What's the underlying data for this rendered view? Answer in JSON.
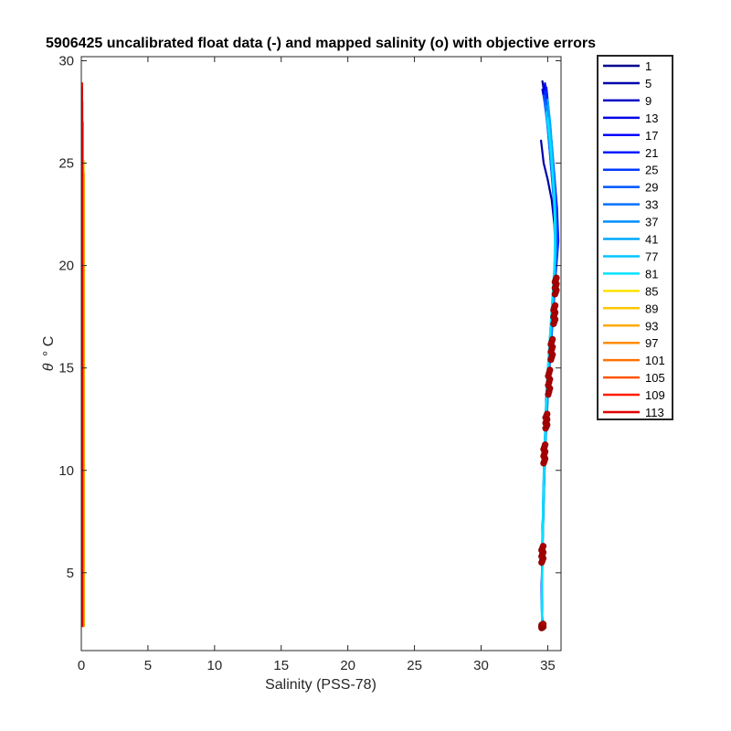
{
  "chart_data": {
    "type": "line",
    "title": "5906425 uncalibrated float data (-) and mapped salinity (o) with objective errors",
    "xlabel": "Salinity (PSS-78)",
    "ylabel_symbol": "θ",
    "ylabel_unit": "° C",
    "xlim": [
      0,
      36
    ],
    "ylim": [
      1.2,
      30.2
    ],
    "xticks": [
      0,
      5,
      10,
      15,
      20,
      25,
      30,
      35
    ],
    "yticks": [
      5,
      10,
      15,
      20,
      25,
      30
    ],
    "grid": false,
    "legend_position": "outside-right",
    "series": [
      {
        "name": "1",
        "color": "#00008F",
        "group": "high",
        "points": [
          [
            34.6,
            29.0
          ],
          [
            34.8,
            28.2
          ],
          [
            35.0,
            27.0
          ],
          [
            35.2,
            25.5
          ],
          [
            35.4,
            24.0
          ],
          [
            35.6,
            22.5
          ],
          [
            35.6,
            21.0
          ],
          [
            35.5,
            19.5
          ],
          [
            35.3,
            17.5
          ],
          [
            35.1,
            15.5
          ],
          [
            34.9,
            13.5
          ],
          [
            34.8,
            11.5
          ],
          [
            34.7,
            9.0
          ],
          [
            34.6,
            6.5
          ],
          [
            34.55,
            4.0
          ],
          [
            34.6,
            2.4
          ]
        ]
      },
      {
        "name": "5",
        "color": "#0000AB",
        "group": "high",
        "points": [
          [
            34.5,
            26.1
          ],
          [
            34.7,
            25.0
          ],
          [
            35.0,
            24.2
          ],
          [
            35.3,
            23.2
          ],
          [
            35.5,
            22.0
          ],
          [
            35.6,
            20.5
          ],
          [
            35.5,
            19.0
          ],
          [
            35.3,
            17.0
          ],
          [
            35.1,
            15.0
          ],
          [
            34.9,
            13.0
          ],
          [
            34.8,
            11.0
          ],
          [
            34.7,
            8.5
          ],
          [
            34.6,
            6.0
          ],
          [
            34.55,
            3.5
          ],
          [
            34.6,
            2.4
          ]
        ]
      },
      {
        "name": "9",
        "color": "#0000C7",
        "group": "high",
        "points": [
          [
            34.6,
            28.6
          ],
          [
            34.9,
            27.5
          ],
          [
            35.1,
            26.0
          ],
          [
            35.3,
            24.5
          ],
          [
            35.5,
            23.0
          ],
          [
            35.6,
            21.5
          ],
          [
            35.5,
            19.8
          ],
          [
            35.3,
            17.8
          ],
          [
            35.1,
            15.8
          ],
          [
            34.9,
            13.8
          ],
          [
            34.8,
            11.8
          ],
          [
            34.7,
            9.2
          ],
          [
            34.6,
            6.6
          ],
          [
            34.55,
            4.2
          ],
          [
            34.6,
            2.4
          ]
        ]
      },
      {
        "name": "13",
        "color": "#0000E3",
        "group": "high",
        "points": [
          [
            34.7,
            28.8
          ],
          [
            34.9,
            27.6
          ],
          [
            35.2,
            26.2
          ],
          [
            35.4,
            24.6
          ],
          [
            35.6,
            23.0
          ],
          [
            35.7,
            21.4
          ],
          [
            35.6,
            19.9
          ],
          [
            35.4,
            17.9
          ],
          [
            35.2,
            15.9
          ],
          [
            35.0,
            13.9
          ],
          [
            34.85,
            11.9
          ],
          [
            34.7,
            9.3
          ],
          [
            34.6,
            6.7
          ],
          [
            34.55,
            4.3
          ],
          [
            34.6,
            2.4
          ]
        ]
      },
      {
        "name": "17",
        "color": "#0000FF",
        "group": "high",
        "points": [
          [
            34.8,
            28.9
          ],
          [
            35.0,
            27.8
          ],
          [
            35.2,
            26.3
          ],
          [
            35.4,
            24.8
          ],
          [
            35.6,
            23.2
          ],
          [
            35.7,
            21.6
          ],
          [
            35.6,
            20.0
          ],
          [
            35.4,
            18.0
          ],
          [
            35.2,
            16.0
          ],
          [
            35.0,
            14.0
          ],
          [
            34.85,
            12.0
          ],
          [
            34.7,
            9.4
          ],
          [
            34.6,
            6.8
          ],
          [
            34.55,
            4.4
          ],
          [
            34.6,
            2.4
          ]
        ]
      },
      {
        "name": "21",
        "color": "#001CFF",
        "group": "high",
        "points": [
          [
            34.9,
            28.7
          ],
          [
            35.1,
            27.4
          ],
          [
            35.3,
            26.0
          ],
          [
            35.5,
            24.4
          ],
          [
            35.7,
            22.8
          ],
          [
            35.8,
            21.2
          ],
          [
            35.6,
            19.6
          ],
          [
            35.4,
            17.6
          ],
          [
            35.2,
            15.6
          ],
          [
            35.0,
            13.6
          ],
          [
            34.85,
            11.6
          ],
          [
            34.7,
            9.1
          ],
          [
            34.6,
            6.5
          ],
          [
            34.55,
            4.1
          ],
          [
            34.6,
            2.4
          ]
        ]
      },
      {
        "name": "25",
        "color": "#0038FF",
        "group": "high",
        "points": [
          [
            34.8,
            28.5
          ],
          [
            35.0,
            27.2
          ],
          [
            35.2,
            25.8
          ],
          [
            35.4,
            24.2
          ],
          [
            35.6,
            22.6
          ],
          [
            35.7,
            21.0
          ],
          [
            35.5,
            19.4
          ],
          [
            35.3,
            17.4
          ],
          [
            35.1,
            15.4
          ],
          [
            34.95,
            13.4
          ],
          [
            34.8,
            11.4
          ],
          [
            34.7,
            8.9
          ],
          [
            34.6,
            6.3
          ],
          [
            34.55,
            3.9
          ],
          [
            34.6,
            2.4
          ]
        ]
      },
      {
        "name": "29",
        "color": "#0054FF",
        "group": "high",
        "points": [
          [
            34.7,
            28.3
          ],
          [
            34.95,
            27.0
          ],
          [
            35.15,
            25.6
          ],
          [
            35.35,
            24.0
          ],
          [
            35.55,
            22.4
          ],
          [
            35.65,
            20.8
          ],
          [
            35.5,
            19.2
          ],
          [
            35.3,
            17.2
          ],
          [
            35.1,
            15.2
          ],
          [
            34.95,
            13.2
          ],
          [
            34.8,
            11.2
          ],
          [
            34.7,
            8.7
          ],
          [
            34.6,
            6.1
          ],
          [
            34.55,
            3.7
          ],
          [
            34.6,
            2.4
          ]
        ]
      },
      {
        "name": "33",
        "color": "#0071FF",
        "group": "high",
        "points": [
          [
            34.8,
            28.0
          ],
          [
            35.0,
            26.8
          ],
          [
            35.2,
            25.4
          ],
          [
            35.4,
            23.8
          ],
          [
            35.6,
            22.2
          ],
          [
            35.6,
            20.6
          ],
          [
            35.5,
            19.0
          ],
          [
            35.3,
            17.0
          ],
          [
            35.1,
            15.0
          ],
          [
            34.95,
            13.0
          ],
          [
            34.8,
            11.0
          ],
          [
            34.7,
            8.5
          ],
          [
            34.6,
            5.9
          ],
          [
            34.55,
            3.5
          ],
          [
            34.6,
            2.4
          ]
        ]
      },
      {
        "name": "37",
        "color": "#008DFF",
        "group": "high",
        "points": [
          [
            34.9,
            27.8
          ],
          [
            35.1,
            26.6
          ],
          [
            35.3,
            25.2
          ],
          [
            35.5,
            23.6
          ],
          [
            35.6,
            22.0
          ],
          [
            35.6,
            20.4
          ],
          [
            35.5,
            18.8
          ],
          [
            35.3,
            16.8
          ],
          [
            35.1,
            14.8
          ],
          [
            34.95,
            12.8
          ],
          [
            34.8,
            10.8
          ],
          [
            34.7,
            8.3
          ],
          [
            34.6,
            5.7
          ],
          [
            34.55,
            3.3
          ],
          [
            34.6,
            2.4
          ]
        ]
      },
      {
        "name": "41",
        "color": "#00A9FF",
        "group": "high",
        "points": [
          [
            35.0,
            28.1
          ],
          [
            35.2,
            26.9
          ],
          [
            35.35,
            25.5
          ],
          [
            35.5,
            23.9
          ],
          [
            35.6,
            22.3
          ],
          [
            35.6,
            20.7
          ],
          [
            35.45,
            19.1
          ],
          [
            35.25,
            17.1
          ],
          [
            35.05,
            15.1
          ],
          [
            34.9,
            13.1
          ],
          [
            34.75,
            11.1
          ],
          [
            34.65,
            8.6
          ],
          [
            34.6,
            6.0
          ],
          [
            34.55,
            3.6
          ],
          [
            34.6,
            2.4
          ]
        ]
      },
      {
        "name": "77",
        "color": "#00C6FF",
        "group": "high",
        "points": [
          [
            34.9,
            27.5
          ],
          [
            35.1,
            26.3
          ],
          [
            35.3,
            25.0
          ],
          [
            35.45,
            23.5
          ],
          [
            35.55,
            21.9
          ],
          [
            35.55,
            20.3
          ],
          [
            35.4,
            18.7
          ],
          [
            35.2,
            16.7
          ],
          [
            35.0,
            14.7
          ],
          [
            34.85,
            12.7
          ],
          [
            34.75,
            10.7
          ],
          [
            34.65,
            8.2
          ],
          [
            34.6,
            5.6
          ],
          [
            34.55,
            3.2
          ],
          [
            34.6,
            2.4
          ]
        ]
      },
      {
        "name": "81",
        "color": "#00E2FF",
        "group": "high",
        "points": [
          [
            35.0,
            27.2
          ],
          [
            35.2,
            26.0
          ],
          [
            35.35,
            24.7
          ],
          [
            35.5,
            23.2
          ],
          [
            35.55,
            21.6
          ],
          [
            35.5,
            20.0
          ],
          [
            35.35,
            18.4
          ],
          [
            35.15,
            16.4
          ],
          [
            34.95,
            14.4
          ],
          [
            34.85,
            12.4
          ],
          [
            34.75,
            10.4
          ],
          [
            34.65,
            7.9
          ],
          [
            34.6,
            5.3
          ],
          [
            34.55,
            3.0
          ],
          [
            34.6,
            2.4
          ]
        ]
      },
      {
        "name": "85",
        "color": "#FFE200",
        "group": "low",
        "points": [
          [
            0.15,
            2.4
          ],
          [
            0.15,
            6.0
          ],
          [
            0.15,
            10.0
          ],
          [
            0.15,
            14.0
          ],
          [
            0.15,
            18.0
          ],
          [
            0.15,
            22.0
          ],
          [
            0.15,
            24.9
          ]
        ]
      },
      {
        "name": "89",
        "color": "#FFC600",
        "group": "low",
        "points": [
          [
            0.18,
            2.4
          ],
          [
            0.18,
            6.0
          ],
          [
            0.18,
            10.0
          ],
          [
            0.18,
            14.0
          ],
          [
            0.18,
            18.0
          ],
          [
            0.18,
            22.0
          ],
          [
            0.18,
            25.1
          ]
        ]
      },
      {
        "name": "93",
        "color": "#FFA900",
        "group": "low",
        "points": [
          [
            0.2,
            2.4
          ],
          [
            0.2,
            6.0
          ],
          [
            0.2,
            10.0
          ],
          [
            0.2,
            14.0
          ],
          [
            0.2,
            18.0
          ],
          [
            0.2,
            22.0
          ],
          [
            0.2,
            24.5
          ]
        ]
      },
      {
        "name": "97",
        "color": "#FF8D00",
        "group": "low",
        "points": [
          [
            0.1,
            2.4
          ],
          [
            0.1,
            6.0
          ],
          [
            0.1,
            10.0
          ],
          [
            0.1,
            14.0
          ],
          [
            0.1,
            18.0
          ],
          [
            0.1,
            22.0
          ],
          [
            0.1,
            26.0
          ]
        ]
      },
      {
        "name": "101",
        "color": "#FF7100",
        "group": "low",
        "points": [
          [
            0.12,
            2.4
          ],
          [
            0.12,
            6.0
          ],
          [
            0.12,
            10.0
          ],
          [
            0.12,
            14.0
          ],
          [
            0.12,
            18.0
          ],
          [
            0.12,
            22.0
          ],
          [
            0.12,
            27.0
          ]
        ]
      },
      {
        "name": "105",
        "color": "#FF5400",
        "group": "low",
        "points": [
          [
            0.08,
            2.4
          ],
          [
            0.08,
            6.0
          ],
          [
            0.08,
            10.0
          ],
          [
            0.08,
            14.0
          ],
          [
            0.08,
            18.0
          ],
          [
            0.08,
            22.0
          ],
          [
            0.08,
            28.0
          ]
        ]
      },
      {
        "name": "109",
        "color": "#FF1C00",
        "group": "low",
        "points": [
          [
            0.06,
            2.4
          ],
          [
            0.06,
            6.0
          ],
          [
            0.06,
            10.0
          ],
          [
            0.06,
            14.0
          ],
          [
            0.06,
            18.0
          ],
          [
            0.06,
            22.0
          ],
          [
            0.06,
            28.9
          ]
        ]
      },
      {
        "name": "113",
        "color": "#E30000",
        "group": "low",
        "points": [
          [
            0.05,
            2.4
          ],
          [
            0.05,
            6.0
          ],
          [
            0.05,
            10.0
          ],
          [
            0.05,
            14.0
          ],
          [
            0.05,
            18.0
          ],
          [
            0.05,
            22.0
          ],
          [
            0.05,
            28.7
          ]
        ]
      }
    ],
    "mapped_salinity_markers": {
      "color": "#B00000",
      "edge_color": "#8B0000",
      "clusters": [
        {
          "x": 35.6,
          "y": 19.0,
          "spread": 0.4
        },
        {
          "x": 35.5,
          "y": 17.6,
          "spread": 0.45
        },
        {
          "x": 35.3,
          "y": 15.9,
          "spread": 0.5
        },
        {
          "x": 35.1,
          "y": 14.3,
          "spread": 0.6
        },
        {
          "x": 34.9,
          "y": 12.4,
          "spread": 0.35
        },
        {
          "x": 34.75,
          "y": 10.8,
          "spread": 0.45
        },
        {
          "x": 34.6,
          "y": 5.9,
          "spread": 0.4
        },
        {
          "x": 34.6,
          "y": 2.4,
          "spread": 0.1
        }
      ]
    }
  }
}
